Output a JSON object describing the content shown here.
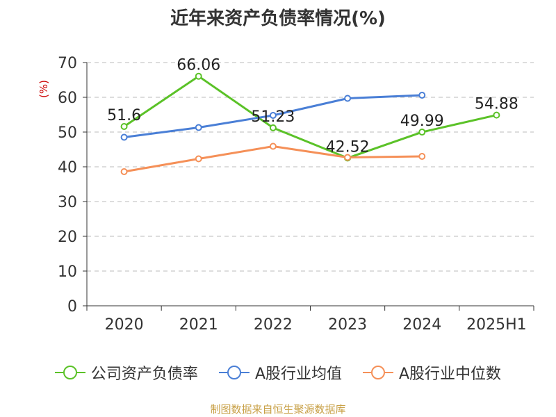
{
  "chart_data": {
    "type": "line",
    "title": "近年来资产负债率情况(%)",
    "ylabel": "(%)",
    "categories": [
      "2020",
      "2021",
      "2022",
      "2023",
      "2024",
      "2025H1"
    ],
    "ylim": [
      0,
      70
    ],
    "yticks": [
      0,
      10,
      20,
      30,
      40,
      50,
      60,
      70
    ],
    "grid": true,
    "legend_position": "bottom",
    "series": [
      {
        "name": "公司资产负债率",
        "color": "#5bc228",
        "values": [
          51.6,
          66.06,
          51.23,
          42.52,
          49.99,
          54.88
        ],
        "labels": [
          "51.6",
          "66.06",
          "51.23",
          "42.52",
          "49.99",
          "54.88"
        ]
      },
      {
        "name": "A股行业均值",
        "color": "#4a7fd6",
        "values": [
          48.5,
          51.3,
          54.8,
          59.7,
          60.6,
          null
        ],
        "labels": null
      },
      {
        "name": "A股行业中位数",
        "color": "#f59058",
        "values": [
          38.6,
          42.3,
          45.9,
          42.7,
          43.0,
          null
        ],
        "labels": null
      }
    ]
  },
  "footer": {
    "source": "制图数据来自恒生聚源数据库"
  }
}
